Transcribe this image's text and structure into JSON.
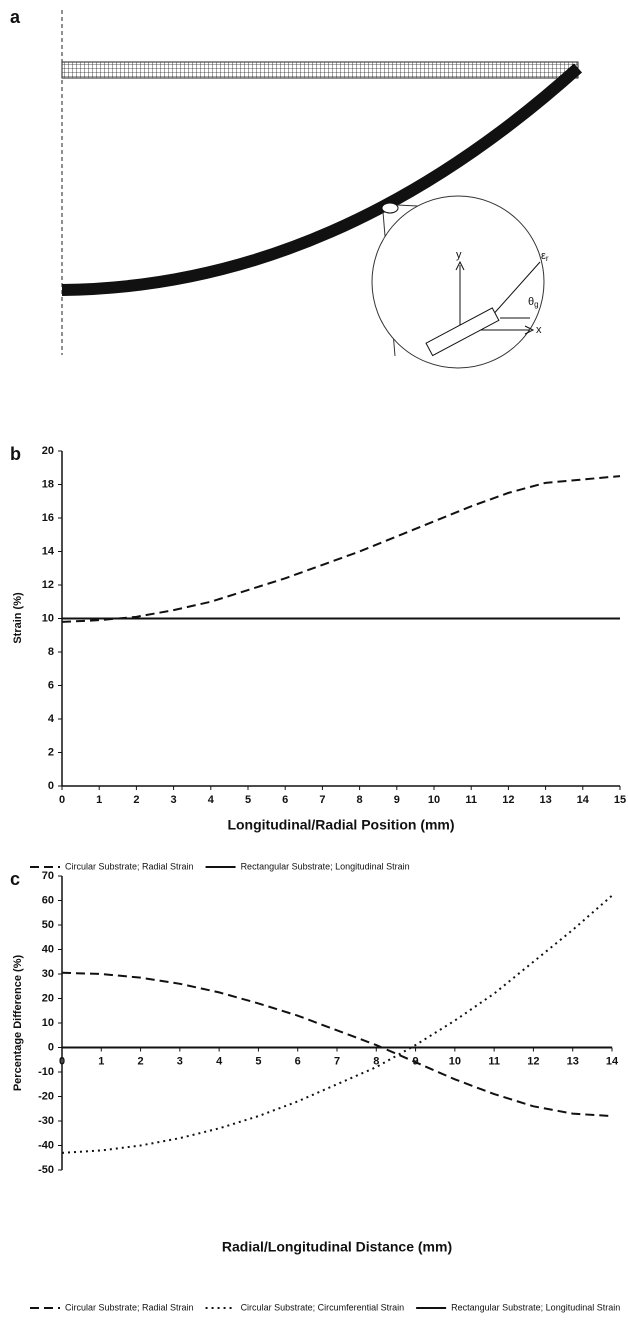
{
  "diagram": {
    "panel": "a",
    "axis_y": "y",
    "axis_x": "x",
    "strain_symbol": "ε",
    "strain_sub": "r",
    "angle_symbol": "θ",
    "angle_sub": "g"
  },
  "chart_data": [
    {
      "type": "line",
      "panel": "b",
      "x_label": "Longitudinal/Radial Position (mm)",
      "y_label": "Strain (%)",
      "x": [
        0,
        1,
        2,
        3,
        4,
        5,
        6,
        7,
        8,
        9,
        10,
        11,
        12,
        13,
        14,
        15
      ],
      "series": [
        {
          "name": "Circular Substrate; Radial Strain",
          "color": "#111111",
          "linestyle": "dashed",
          "values": [
            9.8,
            9.9,
            10.1,
            10.5,
            11.0,
            11.7,
            12.4,
            13.2,
            14.0,
            14.9,
            15.8,
            16.7,
            17.5,
            18.1,
            18.3,
            18.5
          ]
        },
        {
          "name": "Rectangular Substrate; Longitudinal Strain",
          "color": "#111111",
          "linestyle": "solid",
          "values": [
            10,
            10,
            10,
            10,
            10,
            10,
            10,
            10,
            10,
            10,
            10,
            10,
            10,
            10,
            10,
            10
          ]
        }
      ],
      "xlim": [
        0,
        15
      ],
      "xticks": [
        0,
        1,
        2,
        3,
        4,
        5,
        6,
        7,
        8,
        9,
        10,
        11,
        12,
        13,
        14,
        15
      ],
      "ylim": [
        0,
        20
      ],
      "yticks": [
        0,
        2,
        4,
        6,
        8,
        10,
        12,
        14,
        16,
        18,
        20
      ],
      "grid": false
    },
    {
      "type": "line",
      "panel": "c",
      "x_label": "Radial/Longitudinal Distance (mm)",
      "y_label": "Percentage Difference (%)",
      "x": [
        0,
        1,
        2,
        3,
        4,
        5,
        6,
        7,
        8,
        9,
        10,
        11,
        12,
        13,
        14
      ],
      "series": [
        {
          "name": "Circular Substrate; Radial Strain",
          "color": "#111111",
          "linestyle": "dashed",
          "values": [
            30.5,
            30,
            28.5,
            26,
            22.5,
            18,
            13,
            7,
            1,
            -6,
            -13,
            -19,
            -24,
            -27,
            -28
          ]
        },
        {
          "name": "Circular Substrate; Circumferential Strain",
          "color": "#111111",
          "linestyle": "dotted",
          "values": [
            -43,
            -42,
            -40,
            -37,
            -33,
            -28,
            -22,
            -15,
            -8,
            1,
            11,
            22,
            35,
            48,
            62
          ]
        },
        {
          "name": "Rectangular Substrate; Longitudinal Strain",
          "color": "#111111",
          "linestyle": "solid",
          "values": [
            0,
            0,
            0,
            0,
            0,
            0,
            0,
            0,
            0,
            0,
            0,
            0,
            0,
            0,
            0
          ]
        }
      ],
      "xlim": [
        0,
        14
      ],
      "xticks": [
        0,
        1,
        2,
        3,
        4,
        5,
        6,
        7,
        8,
        9,
        10,
        11,
        12,
        13,
        14
      ],
      "ylim": [
        -50,
        70
      ],
      "yticks": [
        -50,
        -40,
        -30,
        -20,
        -10,
        0,
        10,
        20,
        30,
        40,
        50,
        60,
        70
      ],
      "grid": false
    }
  ]
}
